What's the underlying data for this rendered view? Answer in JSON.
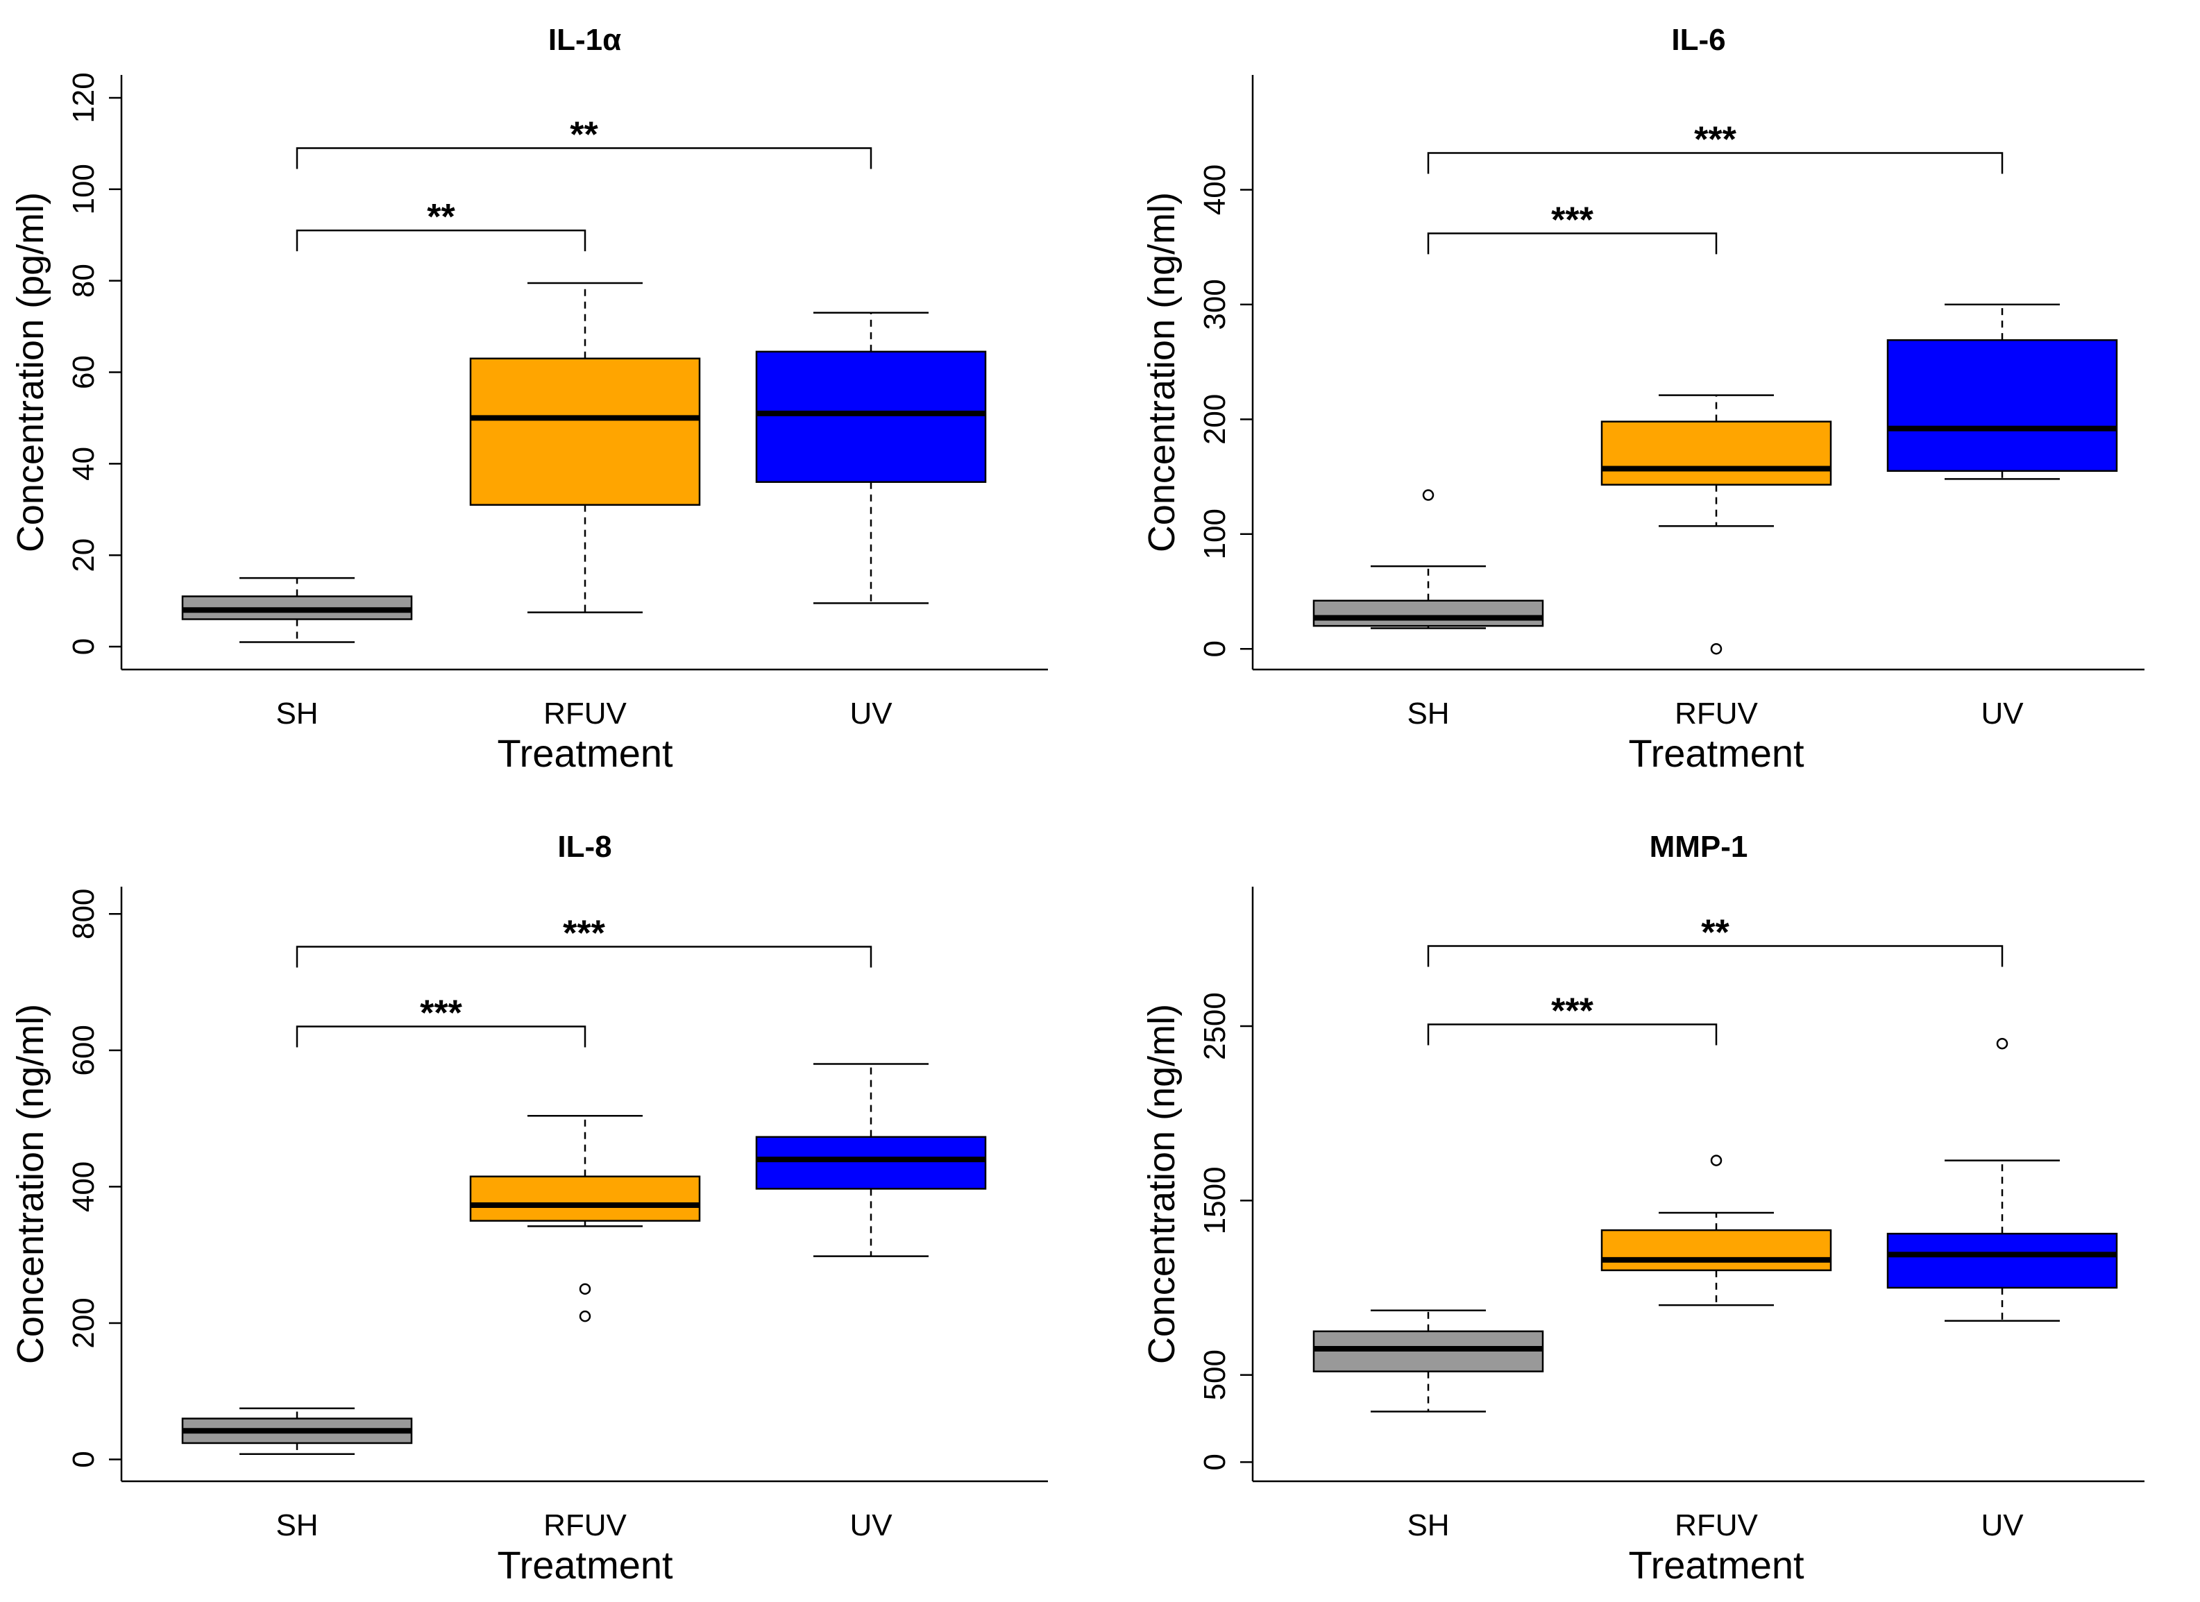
{
  "chart_data": [
    {
      "type": "box",
      "title": "IL-1α",
      "xlabel": "Treatment",
      "ylabel": "Concentration (pg/ml)",
      "categories": [
        "SH",
        "RFUV",
        "UV"
      ],
      "ylim": [
        -5,
        125
      ],
      "yticks": [
        0,
        20,
        40,
        60,
        80,
        100,
        120
      ],
      "boxes": [
        {
          "name": "SH",
          "color": "#999999",
          "whisker_low": 1,
          "q1": 6,
          "median": 8,
          "q3": 11,
          "whisker_high": 15,
          "outliers": []
        },
        {
          "name": "RFUV",
          "color": "#FFA500",
          "whisker_low": 7.5,
          "q1": 31,
          "median": 50,
          "q3": 63,
          "whisker_high": 79.5,
          "outliers": []
        },
        {
          "name": "UV",
          "color": "#0000FF",
          "whisker_low": 9.5,
          "q1": 36,
          "median": 51,
          "q3": 64.5,
          "whisker_high": 73,
          "outliers": []
        }
      ],
      "significance": [
        {
          "from": "SH",
          "to": "RFUV",
          "label": "**",
          "level": 91,
          "top": 91
        },
        {
          "from": "SH",
          "to": "UV",
          "label": "**",
          "level": 109,
          "top": 109
        }
      ]
    },
    {
      "type": "box",
      "title": "IL-6",
      "xlabel": "Treatment",
      "ylabel": "Concentration (ng/ml)",
      "categories": [
        "SH",
        "RFUV",
        "UV"
      ],
      "ylim": [
        -18,
        500
      ],
      "yticks": [
        0,
        100,
        200,
        300,
        400
      ],
      "boxes": [
        {
          "name": "SH",
          "color": "#999999",
          "whisker_low": 18,
          "q1": 20,
          "median": 27,
          "q3": 42,
          "whisker_high": 72,
          "outliers": [
            134
          ]
        },
        {
          "name": "RFUV",
          "color": "#FFA500",
          "whisker_low": 107,
          "q1": 143,
          "median": 157,
          "q3": 198,
          "whisker_high": 221,
          "outliers": [
            0
          ]
        },
        {
          "name": "UV",
          "color": "#0000FF",
          "whisker_low": 148,
          "q1": 155,
          "median": 192,
          "q3": 269,
          "whisker_high": 300,
          "outliers": []
        }
      ],
      "significance": [
        {
          "from": "SH",
          "to": "RFUV",
          "label": "***",
          "level": 362,
          "top": 362
        },
        {
          "from": "SH",
          "to": "UV",
          "label": "***",
          "level": 432,
          "top": 432
        }
      ]
    },
    {
      "type": "box",
      "title": "IL-8",
      "xlabel": "Treatment",
      "ylabel": "Concentration (ng/ml)",
      "categories": [
        "SH",
        "RFUV",
        "UV"
      ],
      "ylim": [
        -32,
        840
      ],
      "yticks": [
        0,
        200,
        400,
        600,
        800
      ],
      "boxes": [
        {
          "name": "SH",
          "color": "#999999",
          "whisker_low": 8,
          "q1": 24,
          "median": 42,
          "q3": 60,
          "whisker_high": 75,
          "outliers": []
        },
        {
          "name": "RFUV",
          "color": "#FFA500",
          "whisker_low": 342,
          "q1": 350,
          "median": 373,
          "q3": 415,
          "whisker_high": 504,
          "outliers": [
            250,
            210
          ]
        },
        {
          "name": "UV",
          "color": "#0000FF",
          "whisker_low": 298,
          "q1": 397,
          "median": 440,
          "q3": 473,
          "whisker_high": 580,
          "outliers": []
        }
      ],
      "significance": [
        {
          "from": "SH",
          "to": "RFUV",
          "label": "***",
          "level": 635,
          "top": 635
        },
        {
          "from": "SH",
          "to": "UV",
          "label": "***",
          "level": 752,
          "top": 752
        }
      ]
    },
    {
      "type": "box",
      "title": "MMP-1",
      "xlabel": "Treatment",
      "ylabel": "Concentration (ng/ml)",
      "categories": [
        "SH",
        "RFUV",
        "UV"
      ],
      "ylim": [
        -110,
        3300
      ],
      "yticks": [
        0,
        500,
        1500,
        2500
      ],
      "boxes": [
        {
          "name": "SH",
          "color": "#999999",
          "whisker_low": 290,
          "q1": 520,
          "median": 650,
          "q3": 750,
          "whisker_high": 870,
          "outliers": []
        },
        {
          "name": "RFUV",
          "color": "#FFA500",
          "whisker_low": 900,
          "q1": 1100,
          "median": 1160,
          "q3": 1330,
          "whisker_high": 1430,
          "outliers": [
            1730
          ]
        },
        {
          "name": "UV",
          "color": "#0000FF",
          "whisker_low": 810,
          "q1": 1000,
          "median": 1190,
          "q3": 1310,
          "whisker_high": 1730,
          "outliers": [
            2400
          ]
        }
      ],
      "significance": [
        {
          "from": "SH",
          "to": "RFUV",
          "label": "***",
          "level": 2510,
          "top": 2510
        },
        {
          "from": "SH",
          "to": "UV",
          "label": "**",
          "level": 2960,
          "top": 2960
        }
      ]
    }
  ]
}
